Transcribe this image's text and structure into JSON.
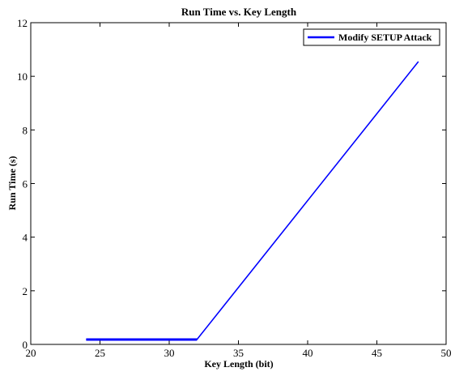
{
  "chart_data": {
    "type": "line",
    "title": "Run Time vs. Key Length",
    "xlabel": "Key Length (bit)",
    "ylabel": "Run Time (s)",
    "xlim": [
      20,
      50
    ],
    "ylim": [
      0,
      12
    ],
    "xticks": [
      20,
      25,
      30,
      35,
      40,
      45,
      50
    ],
    "yticks": [
      0,
      2,
      4,
      6,
      8,
      10,
      12
    ],
    "grid": false,
    "legend_position": "top-right",
    "series": [
      {
        "name": "Modify SETUP Attack",
        "color": "#0000ff",
        "x": [
          24,
          32,
          48
        ],
        "y": [
          0.18,
          0.18,
          10.55
        ]
      }
    ]
  }
}
